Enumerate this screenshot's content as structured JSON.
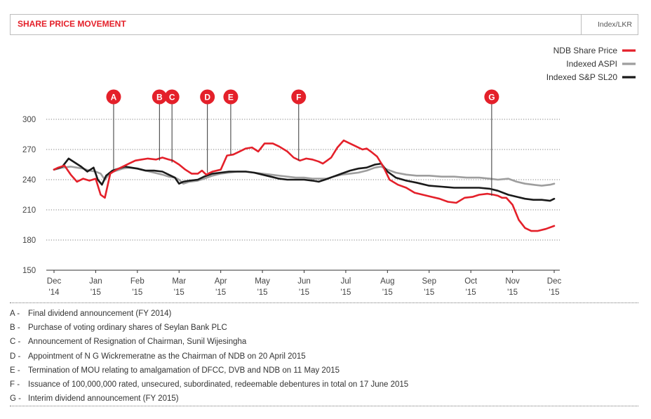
{
  "header": {
    "title": "SHARE PRICE MOVEMENT",
    "units": "Index/LKR"
  },
  "colors": {
    "ndb": "#e4202a",
    "aspi": "#9e9e9e",
    "sl20": "#1a1a1a",
    "marker": "#e4202a"
  },
  "chart_data": {
    "type": "line",
    "ylim": [
      150,
      300
    ],
    "yticks": [
      150,
      180,
      210,
      240,
      270,
      300
    ],
    "xlabels": [
      {
        "m": "Dec",
        "y": "'14"
      },
      {
        "m": "Jan",
        "y": "'15"
      },
      {
        "m": "Feb",
        "y": "'15"
      },
      {
        "m": "Mar",
        "y": "'15"
      },
      {
        "m": "Apr",
        "y": "'15"
      },
      {
        "m": "May",
        "y": "'15"
      },
      {
        "m": "Jun",
        "y": "'15"
      },
      {
        "m": "Jul",
        "y": "'15"
      },
      {
        "m": "Aug",
        "y": "'15"
      },
      {
        "m": "Sep",
        "y": "'15"
      },
      {
        "m": "Oct",
        "y": "'15"
      },
      {
        "m": "Nov",
        "y": "'15"
      },
      {
        "m": "Dec",
        "y": "'15"
      }
    ],
    "grid": "dotted horizontal",
    "legend_position": "top-right",
    "series": [
      {
        "name": "NDB Share Price",
        "x": [
          0,
          0.1,
          0.25,
          0.4,
          0.55,
          0.7,
          0.85,
          1.0,
          1.12,
          1.22,
          1.35,
          1.5,
          1.65,
          1.8,
          1.95,
          2.1,
          2.25,
          2.45,
          2.6,
          2.75,
          2.85,
          3.0,
          3.15,
          3.3,
          3.45,
          3.55,
          3.65,
          3.8,
          4.0,
          4.15,
          4.3,
          4.45,
          4.6,
          4.75,
          4.9,
          5.05,
          5.25,
          5.4,
          5.6,
          5.75,
          5.9,
          6.05,
          6.2,
          6.35,
          6.45,
          6.55,
          6.65,
          6.8,
          6.95,
          7.1,
          7.25,
          7.4,
          7.5,
          7.6,
          7.75,
          7.9,
          8.05,
          8.25,
          8.45,
          8.65,
          8.85,
          9.05,
          9.25,
          9.45,
          9.65,
          9.85,
          10.05,
          10.2,
          10.4,
          10.55,
          10.65,
          10.75,
          10.85,
          11.0,
          11.15,
          11.3,
          11.45,
          11.6,
          11.8,
          12.0
        ],
        "values": [
          250,
          252,
          254,
          245,
          238,
          241,
          239,
          241,
          225,
          222,
          246,
          250,
          253,
          256,
          259,
          260,
          261,
          260,
          262,
          260,
          259,
          255,
          250,
          246,
          246,
          249,
          245,
          248,
          250,
          264,
          265,
          268,
          271,
          272,
          268,
          276,
          276,
          273,
          268,
          262,
          259,
          261,
          260,
          258,
          256,
          259,
          262,
          272,
          279,
          276,
          273,
          270,
          271,
          268,
          263,
          253,
          240,
          235,
          232,
          227,
          225,
          223,
          221,
          218,
          217,
          222,
          223,
          225,
          226,
          225,
          224,
          222,
          222,
          215,
          200,
          192,
          189,
          189,
          191,
          194
        ]
      },
      {
        "name": "Indexed ASPI",
        "x": [
          0,
          0.2,
          0.4,
          0.55,
          0.7,
          0.85,
          1.0,
          1.12,
          1.22,
          1.35,
          1.5,
          1.65,
          1.8,
          2.0,
          2.2,
          2.4,
          2.6,
          2.75,
          2.9,
          3.0,
          3.1,
          3.25,
          3.45,
          3.6,
          3.8,
          4.0,
          4.2,
          4.4,
          4.6,
          4.8,
          5.0,
          5.2,
          5.4,
          5.6,
          5.8,
          6.0,
          6.2,
          6.4,
          6.55,
          6.7,
          6.9,
          7.1,
          7.3,
          7.5,
          7.7,
          7.85,
          8.0,
          8.2,
          8.45,
          8.7,
          9.0,
          9.3,
          9.6,
          9.9,
          10.2,
          10.45,
          10.65,
          10.9,
          11.1,
          11.3,
          11.5,
          11.7,
          11.9,
          12.0
        ],
        "values": [
          250,
          252,
          253,
          252,
          251,
          249,
          248,
          246,
          240,
          247,
          249,
          251,
          252,
          251,
          249,
          247,
          245,
          243,
          242,
          240,
          236,
          238,
          239,
          241,
          244,
          246,
          247,
          248,
          248,
          247,
          246,
          245,
          244,
          243,
          242,
          242,
          241,
          241,
          241,
          243,
          245,
          246,
          247,
          249,
          252,
          253,
          250,
          247,
          245,
          244,
          244,
          243,
          243,
          242,
          242,
          241,
          240,
          241,
          238,
          236,
          235,
          234,
          235,
          236
        ]
      },
      {
        "name": "Indexed S&P SL20",
        "x": [
          0,
          0.2,
          0.35,
          0.5,
          0.65,
          0.8,
          0.95,
          1.05,
          1.15,
          1.25,
          1.4,
          1.55,
          1.7,
          1.85,
          2.0,
          2.2,
          2.4,
          2.6,
          2.75,
          2.9,
          3.0,
          3.1,
          3.25,
          3.45,
          3.6,
          3.8,
          4.0,
          4.2,
          4.4,
          4.6,
          4.8,
          5.0,
          5.2,
          5.4,
          5.6,
          5.8,
          6.0,
          6.2,
          6.35,
          6.5,
          6.7,
          6.9,
          7.1,
          7.3,
          7.5,
          7.7,
          7.85,
          8.0,
          8.2,
          8.45,
          8.7,
          9.0,
          9.3,
          9.6,
          9.9,
          10.2,
          10.45,
          10.65,
          10.9,
          11.1,
          11.3,
          11.5,
          11.7,
          11.9,
          12.0
        ],
        "values": [
          250,
          253,
          261,
          257,
          253,
          248,
          252,
          240,
          235,
          244,
          249,
          251,
          253,
          252,
          251,
          249,
          249,
          248,
          245,
          242,
          236,
          238,
          239,
          240,
          243,
          246,
          247,
          248,
          248,
          248,
          247,
          245,
          243,
          241,
          240,
          240,
          240,
          239,
          238,
          240,
          243,
          246,
          249,
          251,
          252,
          255,
          256,
          248,
          242,
          239,
          237,
          234,
          233,
          232,
          232,
          232,
          231,
          229,
          225,
          223,
          221,
          220,
          220,
          219,
          221
        ]
      }
    ],
    "annotations": [
      {
        "label": "A",
        "x": 1.43,
        "y": 250
      },
      {
        "label": "B",
        "x": 2.53,
        "y": 259
      },
      {
        "label": "C",
        "x": 2.83,
        "y": 257
      },
      {
        "label": "D",
        "x": 3.68,
        "y": 247
      },
      {
        "label": "E",
        "x": 4.24,
        "y": 265
      },
      {
        "label": "F",
        "x": 5.87,
        "y": 259
      },
      {
        "label": "G",
        "x": 10.5,
        "y": 224
      }
    ]
  },
  "notes": [
    {
      "letter": "A",
      "text": "Final dividend announcement (FY 2014)"
    },
    {
      "letter": "B",
      "text": "Purchase of voting ordinary shares of Seylan Bank PLC"
    },
    {
      "letter": "C",
      "text": "Announcement of Resignation of Chairman, Sunil Wijesingha"
    },
    {
      "letter": "D",
      "text": "Appointment of N G Wickremeratne as the Chairman of NDB on 20 April 2015"
    },
    {
      "letter": "E",
      "text": "Termination of MOU relating to amalgamation of DFCC, DVB and NDB on 11 May 2015"
    },
    {
      "letter": "F",
      "text": "Issuance of 100,000,000 rated, unsecured, subordinated, redeemable debentures in total on 17 June 2015"
    },
    {
      "letter": "G",
      "text": "Interim dividend announcement (FY 2015)"
    }
  ]
}
